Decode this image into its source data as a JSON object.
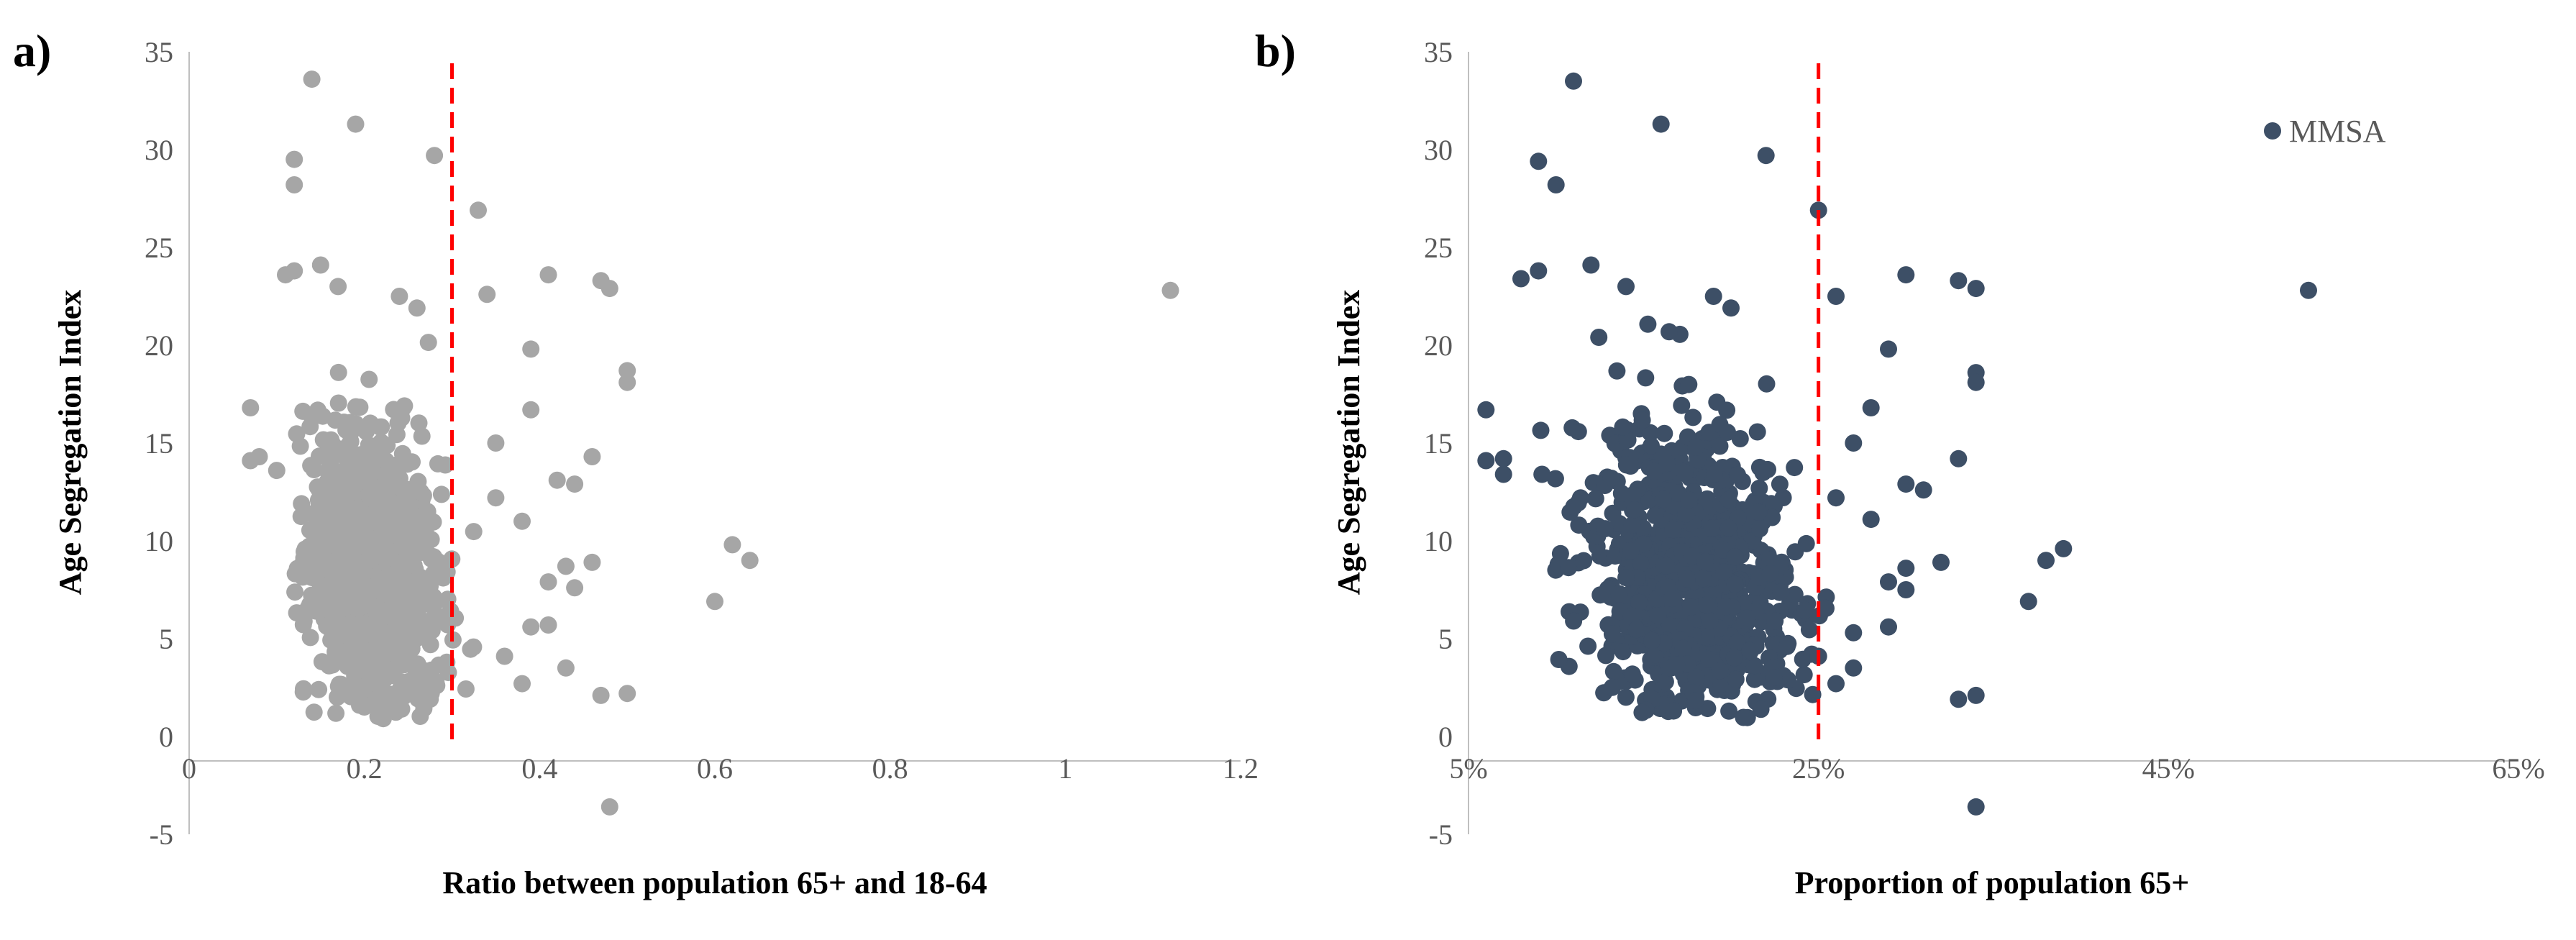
{
  "colors": {
    "panel_a_points": "#a6a6a6",
    "panel_b_points": "#3d4f66",
    "reference_line": "#ff0000",
    "axis": "#bfbfbf",
    "tick_text": "#595959"
  },
  "chart_data": [
    {
      "panel_label": "a)",
      "type": "scatter",
      "title": "",
      "xlabel": "Ratio between population 65+  and 18-64",
      "ylabel": "Age Segregation Index",
      "xlim": [
        0,
        1.2
      ],
      "ylim": [
        -5,
        35
      ],
      "x_ticks": [
        "0",
        "0.2",
        "0.4",
        "0.6",
        "0.8",
        "1",
        "1.2"
      ],
      "x_tick_values": [
        0,
        0.2,
        0.4,
        0.6,
        0.8,
        1.0,
        1.2
      ],
      "y_ticks": [
        "-5",
        "0",
        "5",
        "10",
        "15",
        "20",
        "25",
        "30",
        "35"
      ],
      "y_tick_values": [
        -5,
        0,
        5,
        10,
        15,
        20,
        25,
        30,
        35
      ],
      "x_axis_at_y": 0,
      "reference_line_x": 0.3,
      "legend": null,
      "series": [
        {
          "name": "MMSA",
          "outliers": [
            [
              0.14,
              33.6
            ],
            [
              0.19,
              31.3
            ],
            [
              0.12,
              29.5
            ],
            [
              0.28,
              29.7
            ],
            [
              0.12,
              28.2
            ],
            [
              0.33,
              26.9
            ],
            [
              0.11,
              23.6
            ],
            [
              0.12,
              23.8
            ],
            [
              0.15,
              24.1
            ],
            [
              0.17,
              23.0
            ],
            [
              0.24,
              22.5
            ],
            [
              0.26,
              21.9
            ],
            [
              0.34,
              22.6
            ],
            [
              0.41,
              23.6
            ],
            [
              0.47,
              23.3
            ],
            [
              0.48,
              22.9
            ],
            [
              1.12,
              22.8
            ],
            [
              0.07,
              16.8
            ],
            [
              0.07,
              14.1
            ],
            [
              0.08,
              14.3
            ],
            [
              0.1,
              13.6
            ],
            [
              0.39,
              19.8
            ],
            [
              0.39,
              16.7
            ],
            [
              0.35,
              15.0
            ],
            [
              0.5,
              18.7
            ],
            [
              0.5,
              18.1
            ],
            [
              0.42,
              13.1
            ],
            [
              0.44,
              12.9
            ],
            [
              0.38,
              11.0
            ],
            [
              0.35,
              12.2
            ],
            [
              0.46,
              14.3
            ],
            [
              0.41,
              7.9
            ],
            [
              0.43,
              8.7
            ],
            [
              0.44,
              7.6
            ],
            [
              0.46,
              8.9
            ],
            [
              0.39,
              5.6
            ],
            [
              0.41,
              5.7
            ],
            [
              0.43,
              3.5
            ],
            [
              0.38,
              2.7
            ],
            [
              0.36,
              4.1
            ],
            [
              0.62,
              9.8
            ],
            [
              0.64,
              9.0
            ],
            [
              0.6,
              6.9
            ],
            [
              0.47,
              2.1
            ],
            [
              0.5,
              2.2
            ],
            [
              0.48,
              -3.6
            ]
          ],
          "bulk": {
            "count": 900,
            "x_range": [
              0.12,
              0.33
            ],
            "y_range": [
              0.9,
              21.5
            ],
            "x_center": 0.21,
            "y_center": 8.0
          }
        }
      ]
    },
    {
      "panel_label": "b)",
      "type": "scatter",
      "title": "",
      "xlabel": "Proportion of population 65+",
      "ylabel": "Age Segregation Index",
      "xlim": [
        0.05,
        0.65
      ],
      "ylim": [
        -5,
        35
      ],
      "x_ticks": [
        "5%",
        "25%",
        "45%",
        "65%"
      ],
      "x_tick_values": [
        0.05,
        0.25,
        0.45,
        0.65
      ],
      "y_ticks": [
        "-5",
        "0",
        "5",
        "10",
        "15",
        "20",
        "25",
        "30",
        "35"
      ],
      "y_tick_values": [
        -5,
        0,
        5,
        10,
        15,
        20,
        25,
        30,
        35
      ],
      "x_axis_at_y": 0,
      "reference_line_x": 0.25,
      "legend": {
        "position": "top-right",
        "label": "MMSA"
      },
      "series": [
        {
          "name": "MMSA",
          "outliers": [
            [
              0.11,
              33.5
            ],
            [
              0.16,
              31.3
            ],
            [
              0.09,
              29.4
            ],
            [
              0.22,
              29.7
            ],
            [
              0.1,
              28.2
            ],
            [
              0.25,
              26.9
            ],
            [
              0.08,
              23.4
            ],
            [
              0.09,
              23.8
            ],
            [
              0.12,
              24.1
            ],
            [
              0.14,
              23.0
            ],
            [
              0.19,
              22.5
            ],
            [
              0.2,
              21.9
            ],
            [
              0.26,
              22.5
            ],
            [
              0.3,
              23.6
            ],
            [
              0.33,
              23.3
            ],
            [
              0.34,
              22.9
            ],
            [
              0.53,
              22.8
            ],
            [
              0.06,
              16.7
            ],
            [
              0.06,
              14.1
            ],
            [
              0.07,
              14.2
            ],
            [
              0.07,
              13.4
            ],
            [
              0.29,
              19.8
            ],
            [
              0.28,
              16.8
            ],
            [
              0.27,
              15.0
            ],
            [
              0.34,
              18.6
            ],
            [
              0.34,
              18.1
            ],
            [
              0.3,
              12.9
            ],
            [
              0.31,
              12.6
            ],
            [
              0.28,
              11.1
            ],
            [
              0.26,
              12.2
            ],
            [
              0.33,
              14.2
            ],
            [
              0.29,
              7.9
            ],
            [
              0.3,
              8.6
            ],
            [
              0.32,
              8.9
            ],
            [
              0.3,
              7.5
            ],
            [
              0.27,
              5.3
            ],
            [
              0.29,
              5.6
            ],
            [
              0.27,
              3.5
            ],
            [
              0.26,
              2.7
            ],
            [
              0.25,
              4.1
            ],
            [
              0.39,
              9.6
            ],
            [
              0.38,
              9.0
            ],
            [
              0.37,
              6.9
            ],
            [
              0.33,
              1.9
            ],
            [
              0.34,
              2.1
            ],
            [
              0.34,
              -3.6
            ]
          ],
          "bulk": {
            "count": 900,
            "x_range": [
              0.09,
              0.255
            ],
            "y_range": [
              0.9,
              21.5
            ],
            "x_center": 0.175,
            "y_center": 8.0
          }
        }
      ]
    }
  ]
}
